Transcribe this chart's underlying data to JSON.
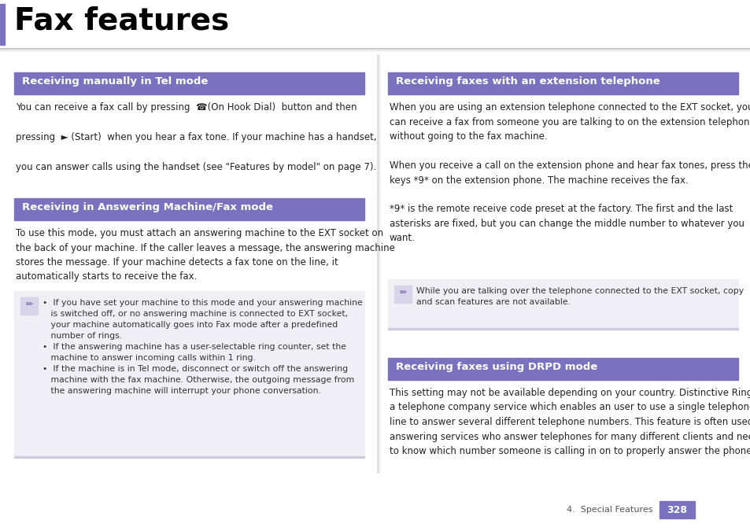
{
  "page_bg": "#ffffff",
  "title": "Fax features",
  "title_fontsize": 26,
  "header_bg": "#7b72bf",
  "header_text_color": "#ffffff",
  "body_color": "#222222",
  "page_number": "328",
  "page_label": "4.  Special Features",
  "left_bar_color": "#7b72bf",
  "note_bg": "#f0eff8",
  "note_icon_bg": "#d0cce8",
  "note_icon_color": "#7b72bf",
  "divider_color": "#cccccc",
  "shadow_color": "#e0e0e0"
}
